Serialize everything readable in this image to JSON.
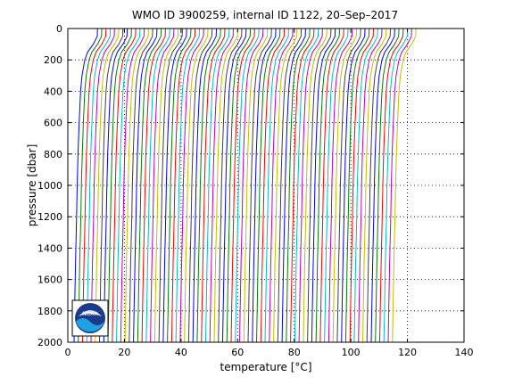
{
  "figure": {
    "title": "WMO ID 3900259, internal ID 1122, 20–Sep–2017",
    "logo_text": "NOAA"
  },
  "chart_data": {
    "type": "line",
    "title": "WMO ID 3900259, internal ID 1122, 20–Sep–2017",
    "xlabel_prefix": "temperature [",
    "xlabel_unit": "°C",
    "xlabel_suffix": "]",
    "ylabel": "pressure [dbar]",
    "xlim": [
      0,
      140
    ],
    "ylim": [
      2000,
      0
    ],
    "y_reversed": true,
    "xticks": [
      0,
      20,
      40,
      60,
      80,
      100,
      120,
      140
    ],
    "yticks": [
      0,
      200,
      400,
      600,
      800,
      1000,
      1200,
      1400,
      1600,
      1800,
      2000
    ],
    "grid": "dotted",
    "description": "Waterfall of temperature profiles, each successive profile offset in temperature",
    "profile_offsets": [
      3,
      4.5,
      6,
      7.5,
      9,
      10.5,
      12,
      13.5,
      15,
      16.5,
      18,
      19.5,
      21,
      22.5,
      24,
      25.5,
      27,
      28.5,
      30,
      31.5,
      33,
      34.5,
      36,
      37.5,
      39,
      40.5,
      42,
      43.5,
      45,
      46.5,
      48,
      49.5,
      51,
      52.5,
      54,
      55.5,
      57,
      58.5,
      60,
      61.5,
      63,
      64.5,
      66,
      67.5,
      69,
      70.5,
      72,
      73.5,
      75,
      76.5,
      78,
      79.5,
      81,
      82.5,
      84,
      85.5,
      87,
      88.5,
      90,
      91.5,
      93,
      94.5,
      96,
      97.5,
      99,
      100.5,
      102,
      103.5,
      105,
      106.5,
      108,
      109.5,
      111,
      112.5,
      114,
      115.5
    ],
    "profile_shape": {
      "pressure": [
        0,
        50,
        100,
        150,
        200,
        300,
        400,
        600,
        800,
        1000,
        1200,
        1500,
        1800,
        2000
      ],
      "temperature_delta": [
        7.5,
        7.4,
        6.0,
        4.0,
        3.0,
        2.0,
        1.5,
        1.0,
        0.6,
        0.3,
        0.1,
        -0.3,
        -0.6,
        -0.8
      ]
    },
    "series_colors": [
      "#0000ff",
      "#008000",
      "#ff0000",
      "#00bfbf",
      "#bf00bf",
      "#bfbf00",
      "#404040"
    ]
  }
}
